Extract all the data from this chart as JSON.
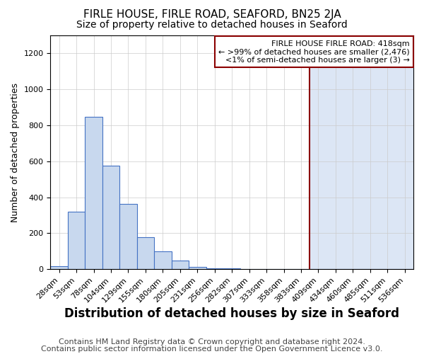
{
  "title": "FIRLE HOUSE, FIRLE ROAD, SEAFORD, BN25 2JA",
  "subtitle": "Size of property relative to detached houses in Seaford",
  "xlabel": "Distribution of detached houses by size in Seaford",
  "ylabel": "Number of detached properties",
  "bar_labels": [
    "28sqm",
    "53sqm",
    "78sqm",
    "104sqm",
    "129sqm",
    "155sqm",
    "180sqm",
    "205sqm",
    "231sqm",
    "256sqm",
    "282sqm",
    "307sqm",
    "333sqm",
    "358sqm",
    "383sqm",
    "409sqm",
    "434sqm",
    "460sqm",
    "485sqm",
    "511sqm",
    "536sqm"
  ],
  "bar_values": [
    18,
    318,
    848,
    575,
    362,
    180,
    98,
    48,
    14,
    6,
    3,
    2,
    1,
    1,
    1,
    1,
    0,
    0,
    0,
    0,
    0
  ],
  "bar_color": "#c8d8ee",
  "bar_edge_color": "#4472c4",
  "highlight_index": 15,
  "highlight_line_color": "#8b0000",
  "highlight_bg_color": "#dce6f5",
  "annotation_title": "FIRLE HOUSE FIRLE ROAD: 418sqm",
  "annotation_line1": "← >99% of detached houses are smaller (2,476)",
  "annotation_line2": "<1% of semi-detached houses are larger (3) →",
  "annotation_box_edge_color": "#8b0000",
  "ylim": [
    0,
    1300
  ],
  "yticks": [
    0,
    200,
    400,
    600,
    800,
    1000,
    1200
  ],
  "footer1": "Contains HM Land Registry data © Crown copyright and database right 2024.",
  "footer2": "Contains public sector information licensed under the Open Government Licence v3.0.",
  "bg_color": "#ffffff",
  "grid_color": "#cccccc",
  "title_fontsize": 11,
  "subtitle_fontsize": 10,
  "ylabel_fontsize": 9,
  "xlabel_fontsize": 12,
  "tick_fontsize": 8,
  "footer_fontsize": 8,
  "ann_fontsize": 8
}
